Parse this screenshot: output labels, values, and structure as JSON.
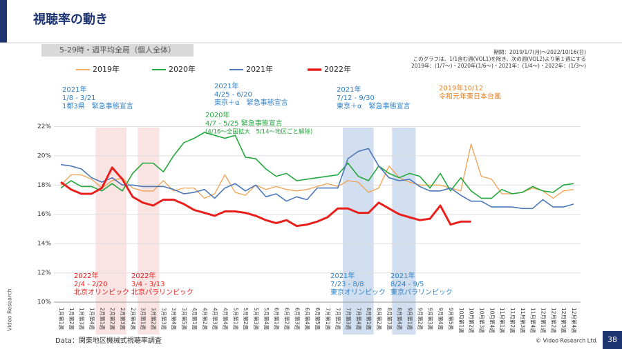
{
  "slide": {
    "title": "視聴率の動き",
    "subtitle": "5-29時・週平均全局（個人全体）",
    "notes": [
      "期間：2019/1/7(月)～2022/10/16(日)",
      "このグラフは、1/1含む週(VOL1)を除き、次の週(VOL2)より第１週にする",
      "2019年：(1/7～)・2020年(1/6～)・2021年：(1/4～)・2022年：(1/3～)"
    ],
    "source": "Data：関東地区機械式視聴率調査",
    "copyright": "© Video Research Ltd.",
    "page": "38",
    "logo": "Video Research"
  },
  "chart_data": {
    "type": "line",
    "categories": [
      "1月第1週",
      "1月第2週",
      "1月第3週",
      "1月第4週",
      "2月第1週",
      "2月第2週",
      "2月第3週",
      "2月第4週",
      "3月第1週",
      "3月第2週",
      "3月第3週",
      "3月第4週",
      "3月第5週",
      "4月第1週",
      "4月第2週",
      "4月第3週",
      "4月第4週",
      "5月第1週",
      "5月第2週",
      "5月第3週",
      "5月第4週",
      "6月第1週",
      "6月第2週",
      "6月第3週",
      "6月第4週",
      "6月第5週",
      "7月第1週",
      "7月第2週",
      "7月第3週",
      "7月第4週",
      "8月第1週",
      "8月第2週",
      "8月第3週",
      "8月第4週",
      "9月第1週",
      "9月第2週",
      "9月第3週",
      "9月第4週",
      "9月第5週",
      "10月第1週",
      "10月第2週",
      "10月第3週",
      "10月第4週",
      "11月第1週",
      "11月第2週",
      "11月第3週",
      "11月第4週",
      "12月第1週",
      "12月第2週",
      "12月第3週",
      "12月第4週"
    ],
    "series": [
      {
        "name": "2019年",
        "color": "#f0a050",
        "width": 1.3,
        "values": [
          18.0,
          18.7,
          18.7,
          18.4,
          17.8,
          18.3,
          18.5,
          17.8,
          17.6,
          17.6,
          18.3,
          17.6,
          17.8,
          17.8,
          17.1,
          17.4,
          18.7,
          17.5,
          17.3,
          18.0,
          17.7,
          17.9,
          17.7,
          17.6,
          17.7,
          17.9,
          18.1,
          17.9,
          18.3,
          18.2,
          17.5,
          17.8,
          19.3,
          18.5,
          18.2,
          18.0,
          18.0,
          18.0,
          17.8,
          17.6,
          20.8,
          18.6,
          18.4,
          17.4,
          17.4,
          17.5,
          17.8,
          17.6,
          17.1,
          17.6,
          17.7
        ]
      },
      {
        "name": "2020年",
        "color": "#22a83c",
        "width": 1.6,
        "values": [
          17.8,
          18.3,
          17.9,
          17.9,
          17.6,
          18.1,
          17.6,
          18.8,
          19.5,
          19.5,
          18.9,
          20.0,
          20.9,
          21.2,
          21.6,
          21.4,
          21.2,
          21.4,
          19.9,
          19.8,
          19.1,
          18.6,
          18.8,
          18.3,
          18.4,
          18.5,
          18.6,
          18.7,
          19.5,
          18.6,
          18.3,
          19.3,
          18.8,
          18.5,
          18.8,
          18.6,
          17.8,
          18.8,
          17.6,
          18.5,
          17.6,
          17.1,
          17.1,
          17.7,
          17.4,
          17.5,
          17.9,
          17.6,
          17.5,
          18.0,
          18.1
        ]
      },
      {
        "name": "2021年",
        "color": "#4a78b8",
        "width": 1.6,
        "values": [
          19.4,
          19.3,
          19.1,
          18.5,
          18.2,
          18.5,
          18.0,
          18.0,
          17.9,
          17.9,
          17.9,
          17.7,
          17.4,
          17.5,
          17.7,
          17.1,
          17.8,
          18.1,
          17.6,
          18.0,
          17.2,
          17.4,
          16.9,
          17.2,
          17.0,
          17.8,
          17.8,
          17.8,
          19.8,
          20.3,
          20.5,
          19.3,
          18.5,
          18.3,
          18.4,
          17.9,
          17.6,
          17.6,
          17.8,
          17.3,
          16.9,
          16.9,
          16.5,
          16.5,
          16.5,
          16.4,
          16.4,
          17.0,
          16.5,
          16.5,
          16.7
        ]
      },
      {
        "name": "2022年",
        "color": "#e8201c",
        "width": 3,
        "values": [
          18.2,
          17.7,
          17.4,
          17.4,
          17.8,
          19.2,
          18.4,
          17.2,
          16.8,
          16.6,
          17.0,
          17.0,
          16.7,
          16.3,
          16.1,
          15.9,
          16.2,
          16.2,
          16.1,
          15.9,
          15.6,
          15.4,
          15.6,
          15.2,
          15.3,
          15.5,
          15.8,
          16.4,
          16.4,
          16.1,
          16.1,
          16.8,
          16.4,
          16.0,
          15.8,
          15.6,
          15.7,
          16.6,
          15.3,
          15.5,
          15.5,
          null,
          null,
          null,
          null,
          null,
          null,
          null,
          null,
          null,
          null
        ]
      }
    ],
    "ylim": [
      10,
      22.4
    ],
    "yticks": [
      {
        "value": 10,
        "label": "10%"
      },
      {
        "value": 12,
        "label": "12%"
      },
      {
        "value": 14,
        "label": "14%"
      },
      {
        "value": 16,
        "label": "16%"
      },
      {
        "value": 18,
        "label": "18%"
      },
      {
        "value": 20,
        "label": "20%"
      },
      {
        "value": 22,
        "label": "22%"
      }
    ],
    "grid": true,
    "annotations": [
      {
        "color": "#2e80c8",
        "lines": [
          "2021年",
          "1/8 - 3/21",
          "1都3県　緊急事態宣言"
        ]
      },
      {
        "color": "#2e80c8",
        "lines": [
          "2021年",
          "4/25 - 6/20",
          "東京＋α　緊急事態宣言"
        ]
      },
      {
        "color": "#22a83c",
        "lines": [
          "2020年",
          "4/7 - 5/25 緊急事態宣言",
          "(4/16～全国拡大　5/14～地区ごと解除)"
        ]
      },
      {
        "color": "#2e80c8",
        "lines": [
          "2021年",
          "7/12 - 9/30",
          "東京＋α　緊急事態宣言"
        ]
      },
      {
        "color": "#e8801c",
        "lines": [
          "2019年10/12",
          "令和元年東日本台風"
        ]
      },
      {
        "color": "#e8201c",
        "lines": [
          "2022年",
          "2/4 - 2/20",
          "北京オリンピック"
        ]
      },
      {
        "color": "#e8201c",
        "lines": [
          "2022年",
          "3/4 - 3/13",
          "北京パラリンピック"
        ]
      },
      {
        "color": "#2e80c8",
        "lines": [
          "2021年",
          "7/23 - 8/8",
          "東京オリンピック"
        ]
      },
      {
        "color": "#2e80c8",
        "lines": [
          "2021年",
          "8/24 - 9/5",
          "東京パラリンピック"
        ]
      }
    ]
  }
}
